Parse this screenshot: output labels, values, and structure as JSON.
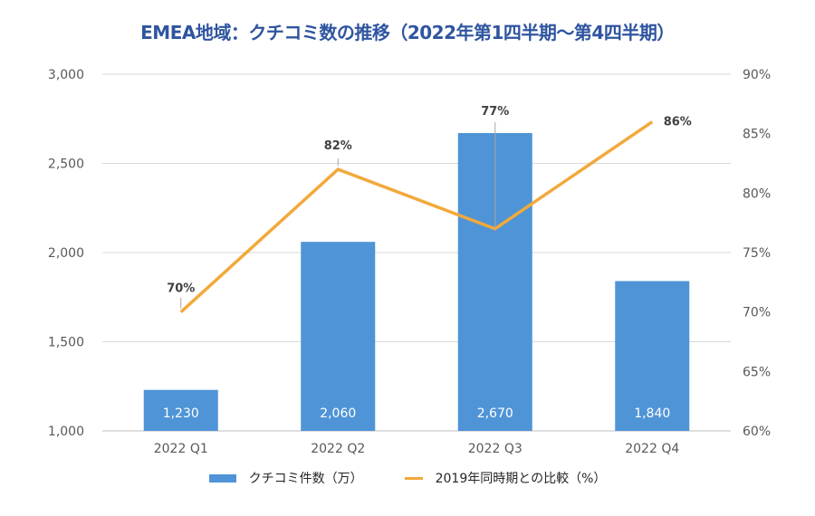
{
  "chart_data": {
    "type": "bar+line",
    "title": "EMEA地域：クチコミ数の推移（2022年第1四半期～第4四半期）",
    "categories": [
      "2022 Q1",
      "2022 Q2",
      "2022 Q3",
      "2022 Q4"
    ],
    "series": [
      {
        "name": "クチコミ件数（万）",
        "type": "bar",
        "axis": "left",
        "values": [
          1230,
          2060,
          2670,
          1840
        ],
        "labels": [
          "1,230",
          "2,060",
          "2,670",
          "1,840"
        ],
        "color": "#4f94d6"
      },
      {
        "name": "2019年同時期との比較（%）",
        "type": "line",
        "axis": "right",
        "values": [
          70,
          82,
          77,
          86
        ],
        "labels": [
          "70%",
          "82%",
          "77%",
          "86%"
        ],
        "color": "#f2a93b"
      }
    ],
    "y_left": {
      "range": [
        1000,
        3000
      ],
      "ticks": [
        "1,000",
        "1,500",
        "2,000",
        "2,500",
        "3,000"
      ]
    },
    "y_right": {
      "range": [
        60,
        90
      ],
      "ticks": [
        "60%",
        "65%",
        "70%",
        "75%",
        "80%",
        "85%",
        "90%"
      ]
    },
    "grid": true,
    "legend": "bottom"
  }
}
